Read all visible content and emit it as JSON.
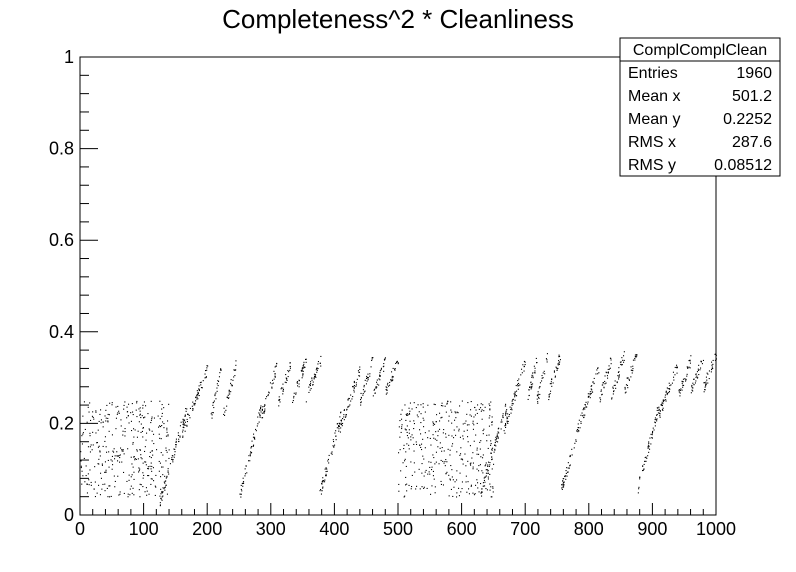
{
  "chart_data": {
    "type": "scatter",
    "title": "Completeness^2 * Cleanliness",
    "xlim": [
      0,
      1000
    ],
    "ylim": [
      0,
      1
    ],
    "x_ticks": [
      "0",
      "100",
      "200",
      "300",
      "400",
      "500",
      "600",
      "700",
      "800",
      "900",
      "1000"
    ],
    "y_ticks": [
      "0",
      "0.2",
      "0.4",
      "0.6",
      "0.8",
      "1"
    ],
    "grid": false,
    "stats_box": {
      "name": "ComplComplClean",
      "rows": [
        {
          "label": "Entries",
          "value": "1960"
        },
        {
          "label": "Mean x",
          "value": "501.2"
        },
        {
          "label": "Mean y",
          "value": "0.2252"
        },
        {
          "label": "RMS x",
          "value": "287.6"
        },
        {
          "label": "RMS y",
          "value": "0.08512"
        }
      ]
    },
    "clusters": [
      {
        "x": [
          0,
          140
        ],
        "y": [
          0.04,
          0.25
        ],
        "kind": "noise"
      },
      {
        "x": [
          125,
          168
        ],
        "y": [
          0.03,
          0.24
        ],
        "kind": "ramp"
      },
      {
        "x": [
          160,
          200
        ],
        "y": [
          0.18,
          0.32
        ],
        "kind": "ramp"
      },
      {
        "x": [
          205,
          222
        ],
        "y": [
          0.21,
          0.33
        ],
        "kind": "ramp"
      },
      {
        "x": [
          225,
          245
        ],
        "y": [
          0.22,
          0.33
        ],
        "kind": "ramp"
      },
      {
        "x": [
          250,
          285
        ],
        "y": [
          0.04,
          0.24
        ],
        "kind": "ramp"
      },
      {
        "x": [
          285,
          310
        ],
        "y": [
          0.22,
          0.33
        ],
        "kind": "ramp"
      },
      {
        "x": [
          310,
          330
        ],
        "y": [
          0.24,
          0.33
        ],
        "kind": "ramp"
      },
      {
        "x": [
          333,
          355
        ],
        "y": [
          0.25,
          0.34
        ],
        "kind": "ramp"
      },
      {
        "x": [
          355,
          378
        ],
        "y": [
          0.26,
          0.34
        ],
        "kind": "ramp"
      },
      {
        "x": [
          375,
          410
        ],
        "y": [
          0.04,
          0.22
        ],
        "kind": "ramp"
      },
      {
        "x": [
          405,
          440
        ],
        "y": [
          0.18,
          0.32
        ],
        "kind": "ramp"
      },
      {
        "x": [
          440,
          460
        ],
        "y": [
          0.25,
          0.34
        ],
        "kind": "ramp"
      },
      {
        "x": [
          460,
          480
        ],
        "y": [
          0.26,
          0.34
        ],
        "kind": "ramp"
      },
      {
        "x": [
          480,
          500
        ],
        "y": [
          0.27,
          0.34
        ],
        "kind": "ramp"
      },
      {
        "x": [
          500,
          650
        ],
        "y": [
          0.04,
          0.25
        ],
        "kind": "noise"
      },
      {
        "x": [
          630,
          670
        ],
        "y": [
          0.05,
          0.24
        ],
        "kind": "ramp"
      },
      {
        "x": [
          665,
          700
        ],
        "y": [
          0.18,
          0.34
        ],
        "kind": "ramp"
      },
      {
        "x": [
          700,
          718
        ],
        "y": [
          0.24,
          0.34
        ],
        "kind": "ramp"
      },
      {
        "x": [
          718,
          735
        ],
        "y": [
          0.25,
          0.35
        ],
        "kind": "ramp"
      },
      {
        "x": [
          735,
          755
        ],
        "y": [
          0.26,
          0.35
        ],
        "kind": "ramp"
      },
      {
        "x": [
          755,
          780
        ],
        "y": [
          0.05,
          0.17
        ],
        "kind": "ramp"
      },
      {
        "x": [
          780,
          815
        ],
        "y": [
          0.18,
          0.32
        ],
        "kind": "ramp"
      },
      {
        "x": [
          815,
          835
        ],
        "y": [
          0.25,
          0.34
        ],
        "kind": "ramp"
      },
      {
        "x": [
          835,
          855
        ],
        "y": [
          0.26,
          0.35
        ],
        "kind": "ramp"
      },
      {
        "x": [
          855,
          875
        ],
        "y": [
          0.27,
          0.35
        ],
        "kind": "ramp"
      },
      {
        "x": [
          875,
          910
        ],
        "y": [
          0.05,
          0.24
        ],
        "kind": "ramp"
      },
      {
        "x": [
          910,
          940
        ],
        "y": [
          0.22,
          0.33
        ],
        "kind": "ramp"
      },
      {
        "x": [
          940,
          960
        ],
        "y": [
          0.26,
          0.34
        ],
        "kind": "ramp"
      },
      {
        "x": [
          960,
          980
        ],
        "y": [
          0.27,
          0.35
        ],
        "kind": "ramp"
      },
      {
        "x": [
          980,
          1000
        ],
        "y": [
          0.28,
          0.35
        ],
        "kind": "ramp"
      }
    ]
  }
}
